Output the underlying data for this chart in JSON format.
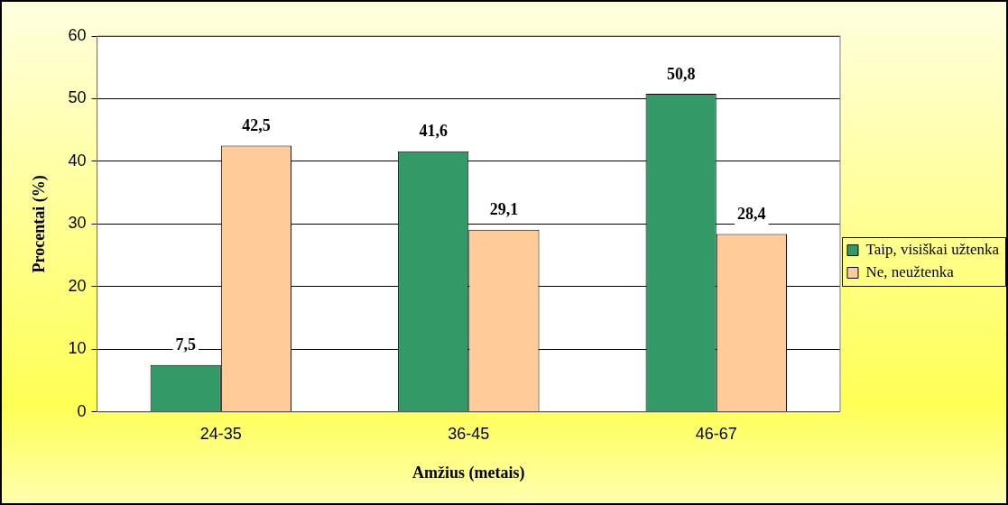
{
  "chart_data": {
    "type": "bar",
    "xlabel": "Amžius (metais)",
    "ylabel": "Procentai (%)",
    "categories": [
      "24-35",
      "36-45",
      "46-67"
    ],
    "series": [
      {
        "name": "Taip, visiškai užtenka",
        "color": "#339966",
        "values": [
          7.5,
          41.6,
          50.8
        ],
        "value_labels": [
          "7,5",
          "41,6",
          "50,8"
        ]
      },
      {
        "name": "Ne, neužtenka",
        "color": "#ffcc99",
        "values": [
          42.5,
          29.1,
          28.4
        ],
        "value_labels": [
          "42,5",
          "29,1",
          "28,4"
        ]
      }
    ],
    "ylim": [
      0,
      60
    ],
    "yticks": [
      0,
      10,
      20,
      30,
      40,
      50,
      60
    ],
    "grid": "y",
    "legend": "right"
  }
}
